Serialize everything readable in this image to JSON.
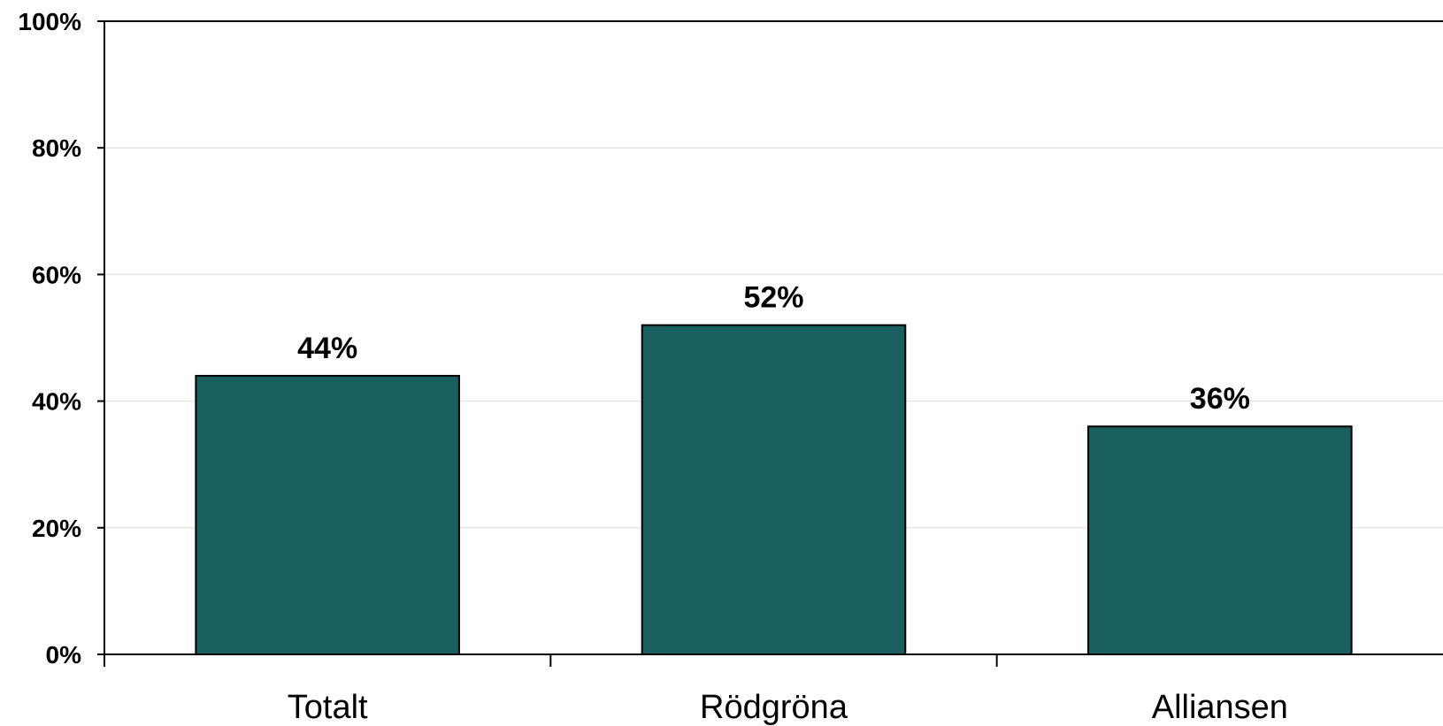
{
  "chart_data": {
    "type": "bar",
    "categories": [
      "Totalt",
      "Rödgröna",
      "Alliansen"
    ],
    "values": [
      44,
      52,
      36
    ],
    "data_labels": [
      "44%",
      "52%",
      "36%"
    ],
    "ylim": [
      0,
      100
    ],
    "yticks": [
      0,
      20,
      40,
      60,
      80,
      100
    ],
    "ytick_labels": [
      "0%",
      "20%",
      "40%",
      "60%",
      "80%",
      "100%"
    ],
    "grid": true,
    "legend": "none",
    "colors": {
      "bar": "#1a5f5f",
      "bar_edge": "#000000",
      "grid": "#e6e6e6",
      "axis": "#000000"
    }
  }
}
